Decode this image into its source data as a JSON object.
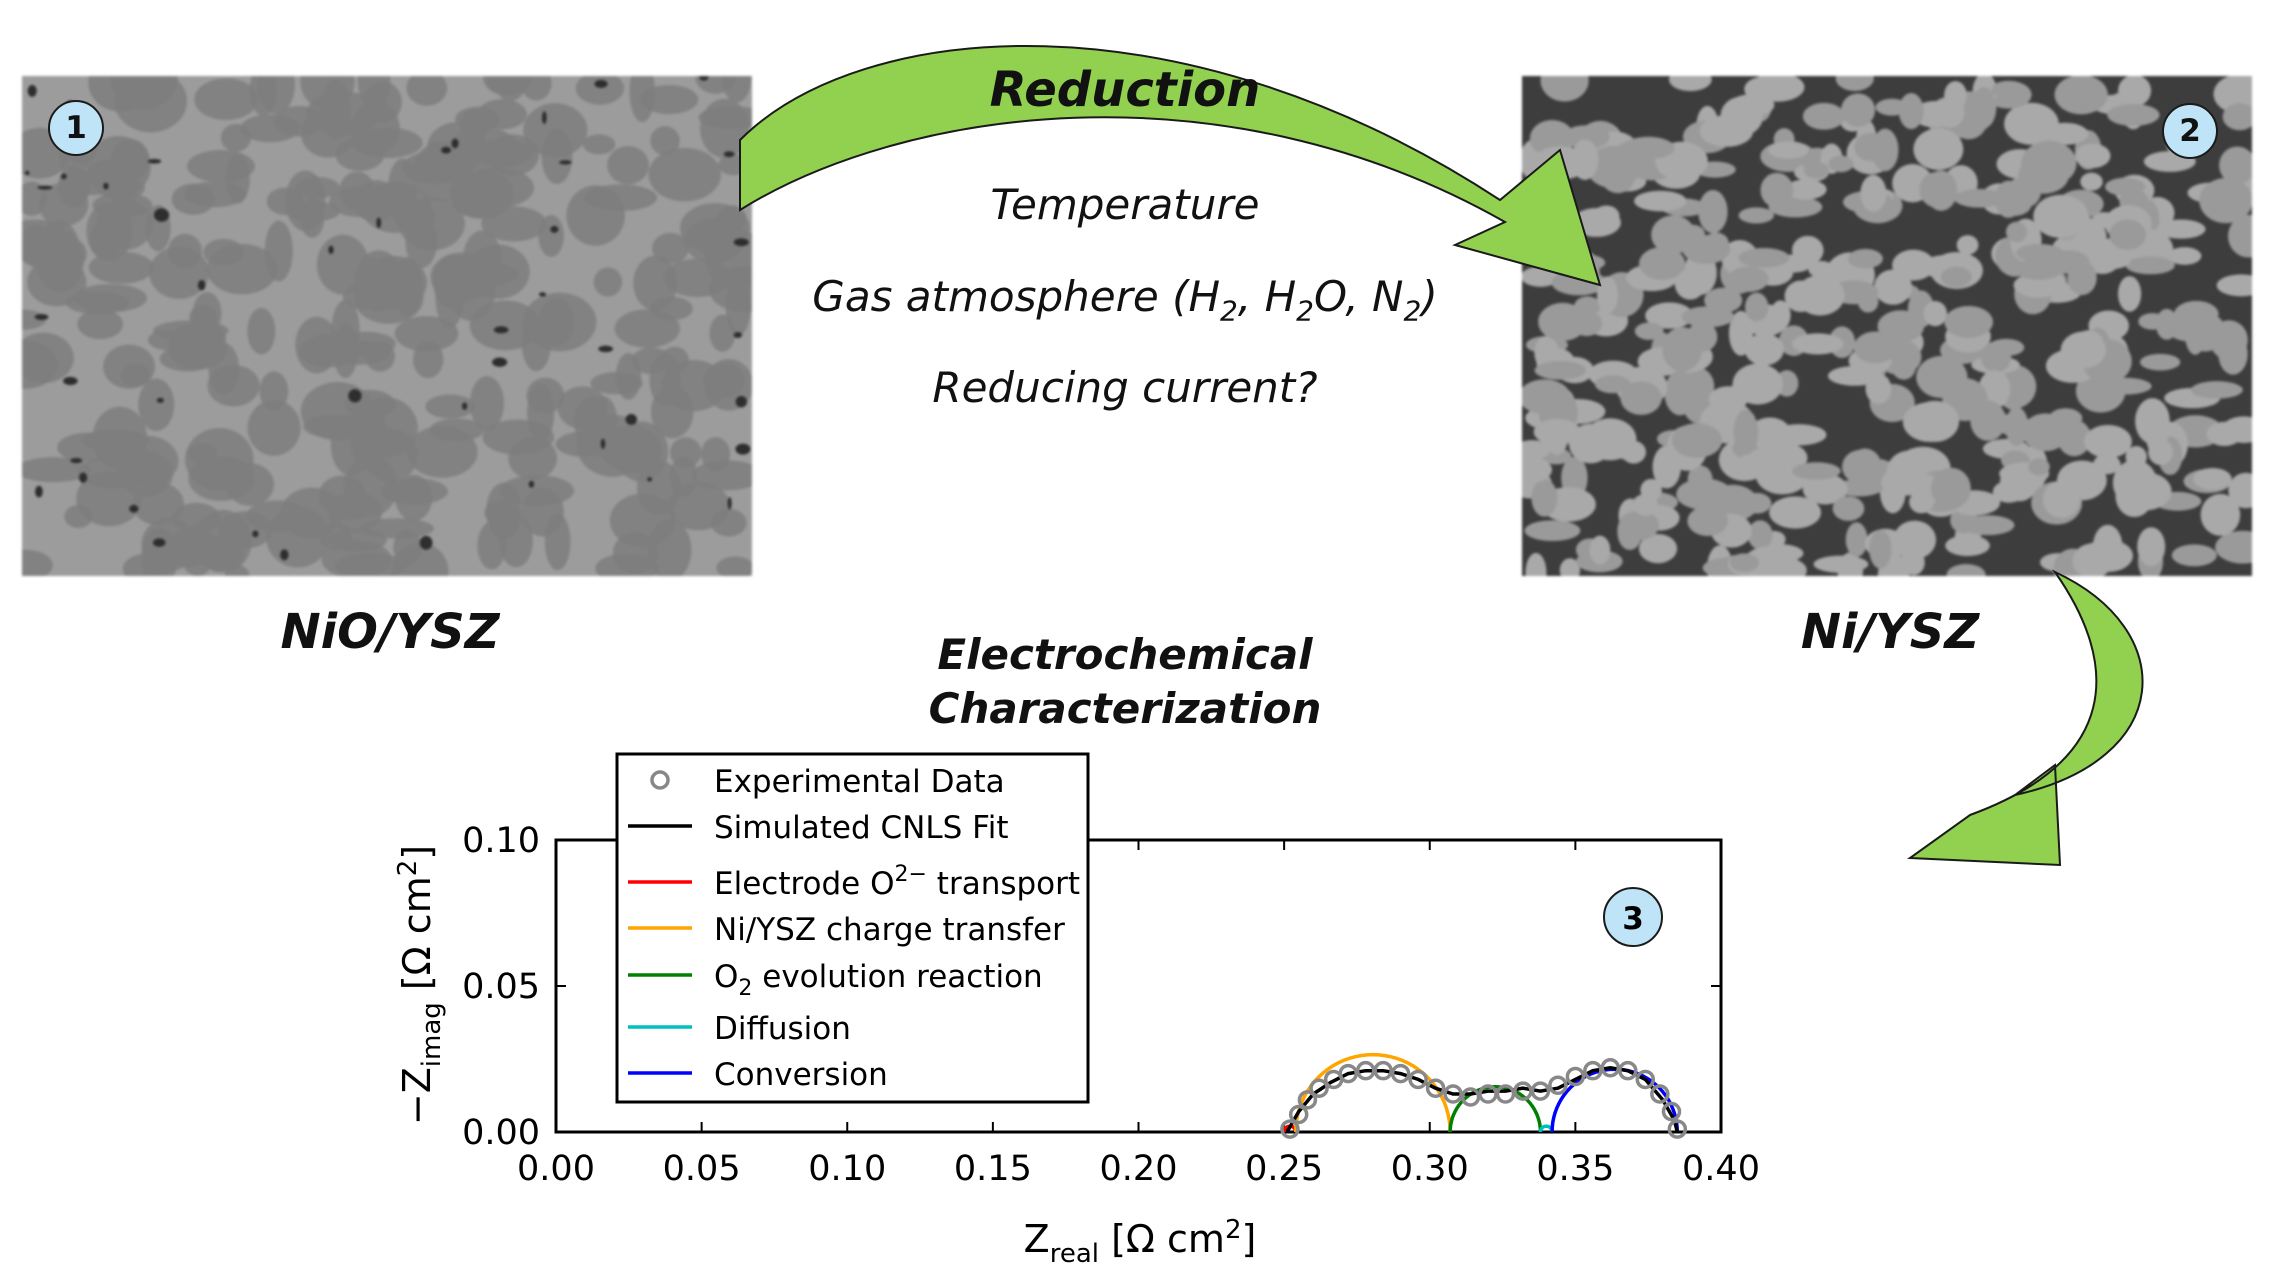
{
  "steps": {
    "step1": {
      "badge": "1",
      "caption": "NiO/YSZ"
    },
    "step2": {
      "badge": "2",
      "caption": "Ni/YSZ"
    },
    "step3": {
      "badge": "3",
      "caption": "Electrochemical Characterization",
      "caption_line1": "Electrochemical",
      "caption_line2": "Characterization"
    }
  },
  "reduction": {
    "title": "Reduction",
    "conditions": [
      "Temperature",
      "Gas atmosphere (H2, H2O, N2)",
      "Reducing current?"
    ]
  },
  "colors": {
    "arrow_fill": "#92d050",
    "badge_fill": "#bfe3f7",
    "experimental": "#888888",
    "fit": "#000000",
    "o2_transport": "#ff0000",
    "charge_transfer": "#ffa500",
    "evolution": "#008000",
    "diffusion": "#00bfbf",
    "conversion": "#0000ff"
  },
  "chart_data": {
    "type": "line",
    "xlabel": "Z_real [Ω cm²]",
    "ylabel": "−Z_imag [Ω cm²]",
    "xlim": [
      0.0,
      0.4
    ],
    "ylim": [
      0.0,
      0.1
    ],
    "xticks": [
      "0.00",
      "0.05",
      "0.10",
      "0.15",
      "0.20",
      "0.25",
      "0.30",
      "0.35",
      "0.40"
    ],
    "yticks": [
      "0.00",
      "0.05",
      "0.10"
    ],
    "legend_placement": "top-left (extends above axes)",
    "legend": [
      "Experimental Data",
      "Simulated CNLS Fit",
      "Electrode O2− transport",
      "Ni/YSZ charge transfer",
      "O2 evolution reaction",
      "Diffusion",
      "Conversion"
    ],
    "series": [
      {
        "name": "Experimental Data",
        "style": "circles",
        "x": [
          0.252,
          0.255,
          0.258,
          0.262,
          0.267,
          0.272,
          0.278,
          0.284,
          0.29,
          0.296,
          0.302,
          0.308,
          0.314,
          0.32,
          0.326,
          0.332,
          0.338,
          0.344,
          0.35,
          0.356,
          0.362,
          0.368,
          0.374,
          0.379,
          0.383,
          0.385
        ],
        "y": [
          0.001,
          0.006,
          0.011,
          0.015,
          0.018,
          0.02,
          0.021,
          0.021,
          0.02,
          0.018,
          0.015,
          0.013,
          0.012,
          0.013,
          0.013,
          0.014,
          0.014,
          0.016,
          0.019,
          0.021,
          0.022,
          0.021,
          0.018,
          0.013,
          0.007,
          0.001
        ]
      },
      {
        "name": "Simulated CNLS Fit",
        "x": [
          0.251,
          0.255,
          0.26,
          0.266,
          0.272,
          0.278,
          0.284,
          0.29,
          0.296,
          0.302,
          0.308,
          0.314,
          0.32,
          0.326,
          0.332,
          0.338,
          0.344,
          0.35,
          0.356,
          0.362,
          0.368,
          0.374,
          0.38,
          0.384,
          0.385
        ],
        "y": [
          0.0,
          0.007,
          0.013,
          0.017,
          0.02,
          0.021,
          0.021,
          0.02,
          0.018,
          0.015,
          0.013,
          0.013,
          0.014,
          0.014,
          0.015,
          0.014,
          0.015,
          0.018,
          0.021,
          0.022,
          0.021,
          0.018,
          0.011,
          0.004,
          0.0
        ]
      },
      {
        "name": "Electrode O2− transport",
        "arc": [
          0.25,
          0.254
        ]
      },
      {
        "name": "Ni/YSZ charge transfer",
        "arc": [
          0.254,
          0.307
        ]
      },
      {
        "name": "O2 evolution reaction",
        "arc": [
          0.307,
          0.338
        ]
      },
      {
        "name": "Diffusion",
        "arc": [
          0.338,
          0.342
        ]
      },
      {
        "name": "Conversion",
        "arc": [
          0.342,
          0.385
        ]
      }
    ]
  }
}
